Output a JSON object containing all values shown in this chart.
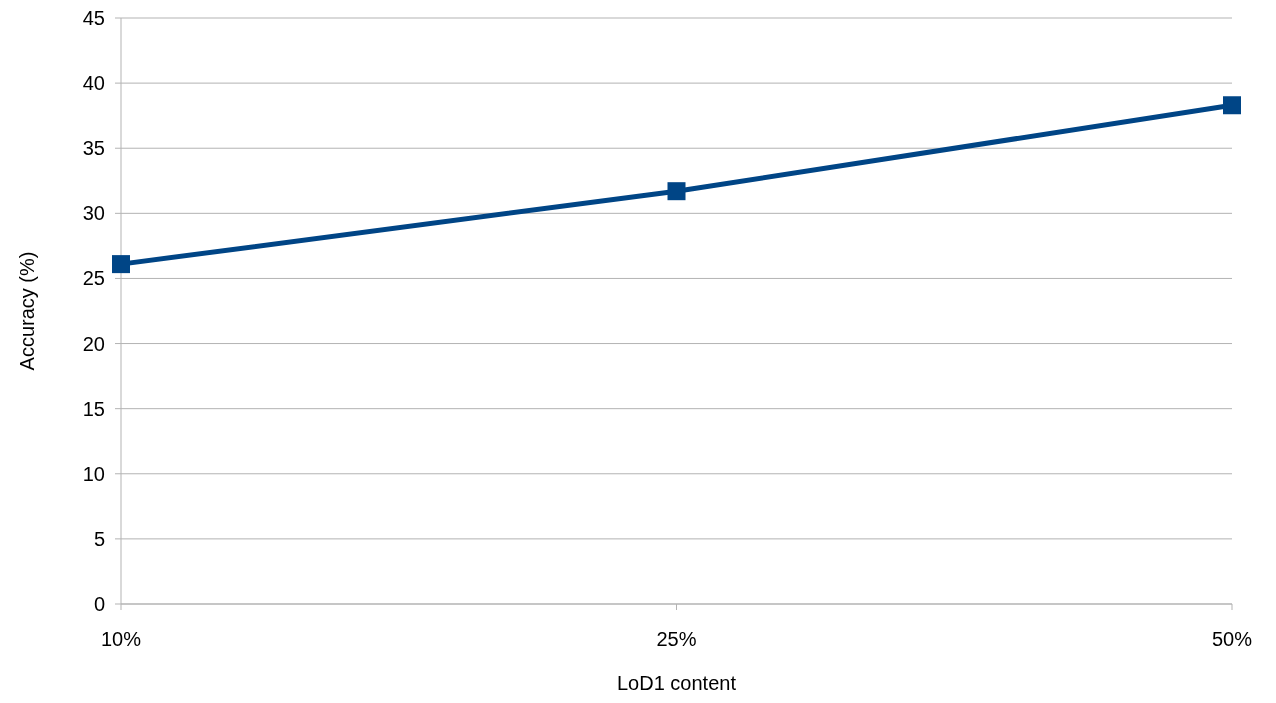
{
  "chart_data": {
    "type": "line",
    "xlabel": "LoD1 content",
    "ylabel": "Accuracy (%)",
    "categories": [
      "10%",
      "25%",
      "50%"
    ],
    "series": [
      {
        "color": "#004586",
        "values": [
          26.1,
          31.7,
          38.3
        ]
      }
    ],
    "ylim": [
      0,
      45
    ],
    "yticks": [
      0,
      5,
      10,
      15,
      20,
      25,
      30,
      35,
      40,
      45
    ],
    "grid": "y",
    "marker": "square",
    "line_style": "solid"
  }
}
